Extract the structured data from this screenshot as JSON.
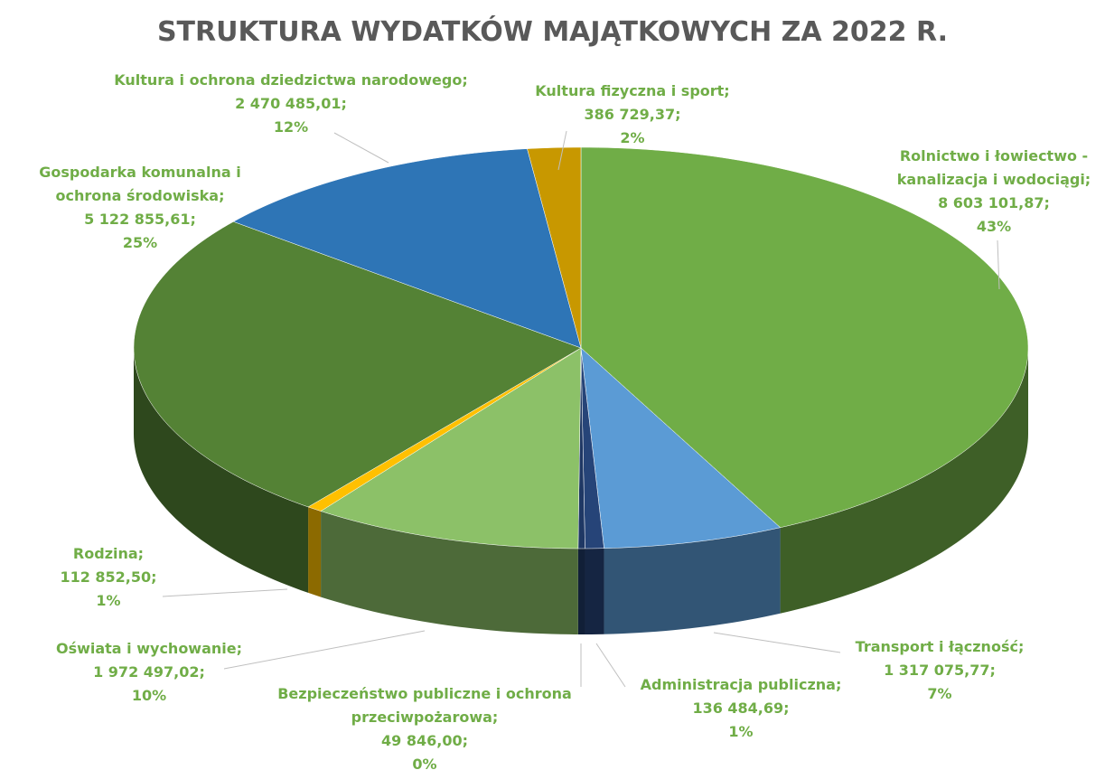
{
  "chart_data": {
    "type": "pie3d",
    "title": "STRUKTURA WYDATKÓW MAJĄTKOWYCH  ZA 2022 R.",
    "categories": [
      "Rolnictwo i łowiectwo - kanalizacja i wodociągi;",
      "Transport i łączność;",
      "Administracja publiczna;",
      "Bezpieczeństwo publiczne i ochrona przeciwpożarowa;",
      "Oświata i wychowanie;",
      "Rodzina;",
      "Gospodarka komunalna i ochrona środowiska;",
      "Kultura i ochrona dziedzictwa narodowego;",
      "Kultura fizyczna i sport;"
    ],
    "values": [
      8603101.87,
      1317075.77,
      136484.69,
      49846.0,
      1972497.02,
      112852.5,
      5122855.61,
      2470485.01,
      386729.37
    ],
    "value_labels": [
      "8 603 101,87;",
      "1 317 075,77;",
      "136 484,69;",
      "49 846,00;",
      "1 972 497,02;",
      "112 852,50;",
      "5 122 855,61;",
      "2 470 485,01;",
      "386 729,37;"
    ],
    "percents": [
      43,
      7,
      1,
      0,
      10,
      1,
      25,
      12,
      2
    ],
    "percent_labels": [
      "43%",
      "7%",
      "1%",
      "0%",
      "10%",
      "1%",
      "25%",
      "12%",
      "2%"
    ],
    "colors": [
      "#70ad47",
      "#5b9bd5",
      "#264478",
      "#1f3864",
      "#8cc168",
      "#ffc000",
      "#548235",
      "#2e75b6",
      "#c89800"
    ]
  }
}
